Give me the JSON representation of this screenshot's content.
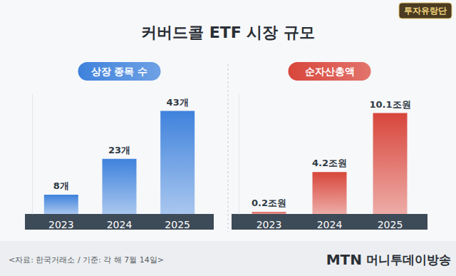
{
  "title": "커버드콜 ETF 시장 규모",
  "badge": "투자유랑단",
  "source": "<자료: 한국거래소 / 기준: 각 해 7월 14일>",
  "brand_mark": "MTN",
  "brand_name": "머니투데이방송",
  "chart_data": [
    {
      "type": "bar",
      "title": "상장 종목 수",
      "categories": [
        "2023",
        "2024",
        "2025"
      ],
      "values": [
        8,
        23,
        43
      ],
      "value_labels": [
        "8개",
        "23개",
        "43개"
      ],
      "color": "#3f82dc",
      "ylim": [
        0,
        50
      ],
      "grid": false,
      "data_labels": true,
      "tick_labels": "x"
    },
    {
      "type": "bar",
      "title": "순자산총액",
      "categories": [
        "2023",
        "2024",
        "2025"
      ],
      "values": [
        0.2,
        4.2,
        10.1
      ],
      "value_labels": [
        "0.2조원",
        "4.2조원",
        "10.1조원"
      ],
      "color": "#d8463b",
      "ylim": [
        0,
        12
      ],
      "grid": false,
      "data_labels": true,
      "tick_labels": "x"
    }
  ]
}
